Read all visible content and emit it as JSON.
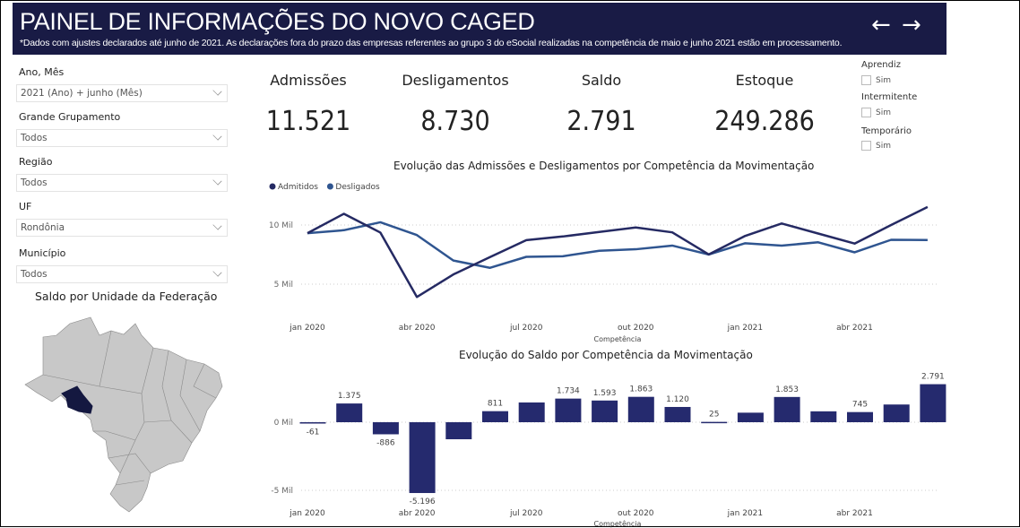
{
  "header": {
    "title": "PAINEL DE INFORMAÇÕES DO NOVO CAGED",
    "subtitle": "*Dados com ajustes declarados até junho de 2021. As declarações fora do prazo das empresas referentes ao grupo 3 do eSocial realizadas na competência de maio e junho 2021 estão em processamento.",
    "back_icon": "arrow-left-icon",
    "forward_icon": "arrow-right-icon",
    "back_label": "←",
    "forward_label": "→",
    "bg_color": "#191b45"
  },
  "filters": [
    {
      "label": "Ano, Mês",
      "value": "2021 (Ano) + junho (Mês)"
    },
    {
      "label": "Grande Grupamento",
      "value": "Todos"
    },
    {
      "label": "Região",
      "value": "Todos"
    },
    {
      "label": "UF",
      "value": "Rondônia"
    },
    {
      "label": "Município",
      "value": "Todos"
    }
  ],
  "map": {
    "title": "Saldo por Unidade da Federação",
    "highlighted_state": "Rondônia",
    "highlight_color": "#141840",
    "base_color": "#c8c8c8"
  },
  "kpis": [
    {
      "label": "Admissões",
      "value": "11.521"
    },
    {
      "label": "Desligamentos",
      "value": "8.730"
    },
    {
      "label": "Saldo",
      "value": "2.791"
    },
    {
      "label": "Estoque",
      "value": "249.286"
    }
  ],
  "checkbox_filters": [
    {
      "label": "Aprendiz",
      "option": "Sim",
      "checked": false
    },
    {
      "label": "Intermitente",
      "option": "Sim",
      "checked": false
    },
    {
      "label": "Temporário",
      "option": "Sim",
      "checked": false
    }
  ],
  "chart_data": [
    {
      "type": "line",
      "title": "Evolução das Admissões e Desligamentos por Competência da Movimentação",
      "xlabel": "Competência",
      "ylabel": "",
      "legend": "top-left",
      "grid": true,
      "x": [
        "jan 2020",
        "fev 2020",
        "mar 2020",
        "abr 2020",
        "mai 2020",
        "jun 2020",
        "jul 2020",
        "ago 2020",
        "set 2020",
        "out 2020",
        "nov 2020",
        "dez 2020",
        "jan 2021",
        "fev 2021",
        "mar 2021",
        "abr 2021",
        "mai 2021",
        "jun 2021"
      ],
      "x_ticks": [
        "jan 2020",
        "abr 2020",
        "jul 2020",
        "out 2020",
        "jan 2021",
        "abr 2021"
      ],
      "y_ticks": [
        "5 Mil",
        "10 Mil"
      ],
      "ylim": [
        2500,
        12500
      ],
      "series": [
        {
          "name": "Admitidos",
          "color": "#252a63",
          "values": [
            9310,
            10950,
            9360,
            3920,
            5820,
            7280,
            8720,
            9030,
            9410,
            9790,
            9380,
            7510,
            9080,
            10130,
            9280,
            8430,
            10000,
            11521
          ]
        },
        {
          "name": "Desligados",
          "color": "#2f5590",
          "values": [
            9310,
            9560,
            10230,
            9150,
            7000,
            6380,
            7310,
            7360,
            7820,
            7950,
            8260,
            7510,
            8460,
            8260,
            8540,
            7690,
            8750,
            8730
          ]
        }
      ]
    },
    {
      "type": "bar",
      "title": "Evolução do Saldo por Competência da Movimentação",
      "xlabel": "Competência",
      "ylabel": "",
      "grid": true,
      "color": "#252a6e",
      "categories": [
        "jan 2020",
        "fev 2020",
        "mar 2020",
        "abr 2020",
        "mai 2020",
        "jun 2020",
        "jul 2020",
        "ago 2020",
        "set 2020",
        "out 2020",
        "nov 2020",
        "dez 2020",
        "jan 2021",
        "fev 2021",
        "mar 2021",
        "abr 2021",
        "mai 2021",
        "jun 2021"
      ],
      "values": [
        -61,
        1375,
        -886,
        -5196,
        -1250,
        811,
        1450,
        1734,
        1593,
        1863,
        1120,
        25,
        700,
        1853,
        800,
        745,
        1300,
        2791
      ],
      "data_labels": [
        "-61",
        "1.375",
        "-886",
        "-5.196",
        null,
        "811",
        null,
        "1.734",
        "1.593",
        "1.863",
        "1.120",
        "25",
        null,
        "1.853",
        null,
        "745",
        null,
        "2.791"
      ],
      "x_ticks": [
        "jan 2020",
        "abr 2020",
        "jul 2020",
        "out 2020",
        "jan 2021",
        "abr 2021"
      ],
      "y_ticks": [
        "-5 Mil",
        "0 Mil"
      ],
      "ylim": [
        -5600,
        3000
      ]
    }
  ]
}
